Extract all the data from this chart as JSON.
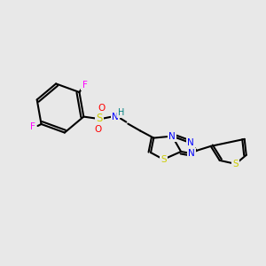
{
  "background_color": "#e8e8e8",
  "bond_color": "#000000",
  "bond_width": 1.5,
  "atom_colors": {
    "F": "#ff00ff",
    "S": "#cccc00",
    "N": "#0000ff",
    "O": "#ff0000",
    "H": "#008080",
    "C": "#000000"
  },
  "font_size": 7.5
}
